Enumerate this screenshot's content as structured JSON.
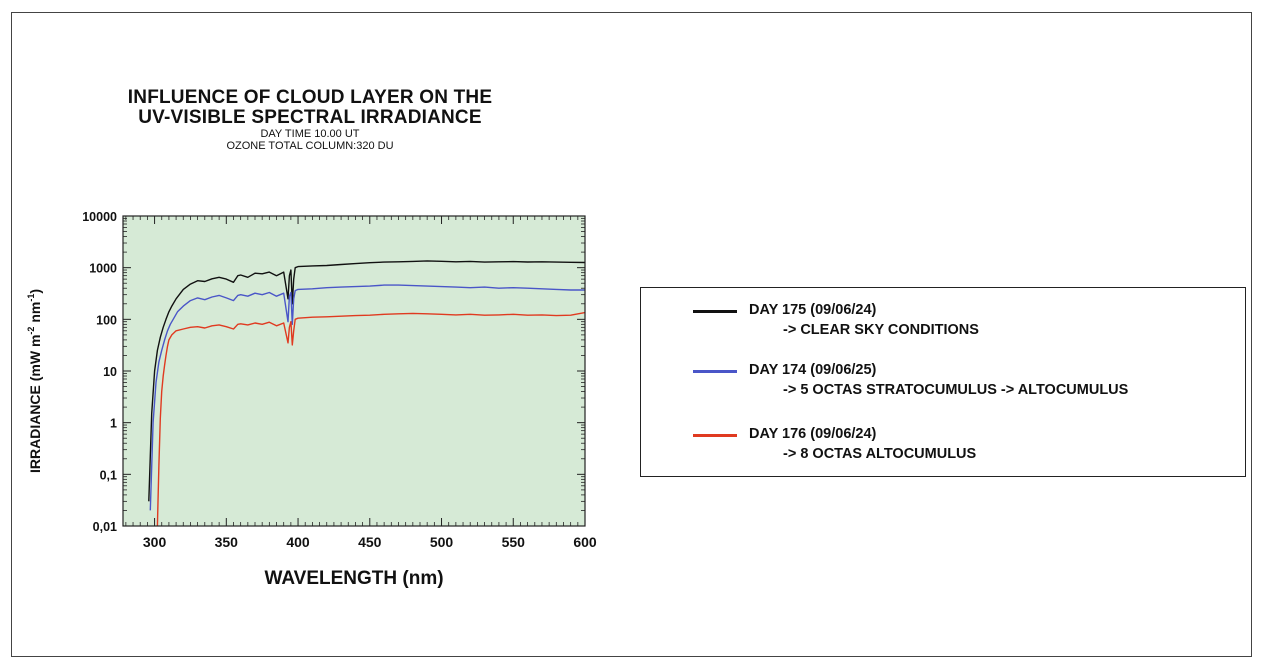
{
  "chart_data": {
    "type": "line",
    "title": "INFLUENCE OF CLOUD LAYER ON THE",
    "title_line2": "UV-VISIBLE SPECTRAL IRRADIANCE",
    "subtitle": "DAY TIME 10.00 UT",
    "subtitle2": "OZONE TOTAL COLUMN:320 DU",
    "xlabel": "WAVELENGTH (nm)",
    "ylabel": "IRRADIANCE (mW m-2 nm-1)",
    "ylabel_main": "IRRADIANCE (mW m",
    "ylabel_sup1": "-2",
    "ylabel_mid": " nm",
    "ylabel_sup2": "-1",
    "ylabel_end": ")",
    "xlim": [
      278,
      600
    ],
    "ylim": [
      0.01,
      10000
    ],
    "yscale": "log",
    "x_ticks": [
      "300",
      "350",
      "400",
      "450",
      "500",
      "550",
      "600"
    ],
    "x_tick_values": [
      300,
      350,
      400,
      450,
      500,
      550,
      600
    ],
    "y_ticks": [
      "0,01",
      "0,1",
      "1",
      "10",
      "100",
      "1000",
      "10000"
    ],
    "y_tick_values": [
      0.01,
      0.1,
      1,
      10,
      100,
      1000,
      10000
    ],
    "plot_background": "#d6ead6",
    "grid": false,
    "legend_position": "right",
    "series": [
      {
        "name": "DAY 175 (09/06/24)",
        "description": "-> CLEAR SKY CONDITIONS",
        "color": "#111111",
        "x": [
          296,
          298,
          300,
          302,
          304,
          306,
          308,
          310,
          312,
          315,
          318,
          320,
          325,
          330,
          335,
          340,
          345,
          350,
          355,
          358,
          360,
          365,
          370,
          375,
          380,
          385,
          390,
          393,
          394,
          395,
          396,
          397,
          398,
          400,
          410,
          420,
          430,
          440,
          450,
          460,
          470,
          480,
          490,
          500,
          510,
          520,
          530,
          540,
          550,
          560,
          570,
          580,
          590,
          600
        ],
        "y": [
          0.03,
          1.5,
          10,
          25,
          45,
          70,
          100,
          140,
          180,
          250,
          320,
          380,
          480,
          560,
          540,
          610,
          650,
          600,
          520,
          700,
          720,
          650,
          780,
          760,
          820,
          700,
          820,
          250,
          700,
          900,
          200,
          600,
          1000,
          1050,
          1080,
          1100,
          1150,
          1200,
          1250,
          1280,
          1300,
          1320,
          1350,
          1330,
          1300,
          1320,
          1280,
          1300,
          1310,
          1290,
          1300,
          1280,
          1270,
          1260
        ]
      },
      {
        "name": "DAY 174 (09/06/25)",
        "description": "-> 5 OCTAS STRATOCUMULUS -> ALTOCUMULUS",
        "color": "#4a56c8",
        "x": [
          297,
          299,
          301,
          303,
          305,
          307,
          309,
          311,
          313,
          316,
          320,
          325,
          330,
          335,
          340,
          345,
          350,
          355,
          358,
          360,
          365,
          370,
          375,
          380,
          385,
          390,
          393,
          394,
          395,
          396,
          397,
          398,
          400,
          410,
          420,
          430,
          440,
          450,
          460,
          470,
          480,
          490,
          500,
          510,
          520,
          530,
          540,
          550,
          560,
          570,
          580,
          590,
          600
        ],
        "y": [
          0.02,
          1,
          6,
          15,
          25,
          40,
          60,
          80,
          100,
          140,
          180,
          230,
          260,
          240,
          270,
          290,
          260,
          230,
          290,
          300,
          280,
          320,
          300,
          330,
          280,
          320,
          90,
          280,
          330,
          80,
          250,
          360,
          380,
          390,
          410,
          420,
          430,
          440,
          460,
          460,
          450,
          440,
          430,
          420,
          410,
          420,
          400,
          410,
          400,
          390,
          380,
          370,
          370
        ]
      },
      {
        "name": "DAY 176 (09/06/24)",
        "description": "-> 8 OCTAS ALTOCUMULUS",
        "color": "#e03a20",
        "x": [
          302,
          303,
          304,
          305,
          306,
          307,
          308,
          309,
          310,
          312,
          315,
          320,
          325,
          330,
          335,
          340,
          345,
          350,
          355,
          358,
          360,
          365,
          370,
          375,
          380,
          385,
          390,
          393,
          394,
          395,
          396,
          397,
          398,
          400,
          410,
          420,
          430,
          440,
          450,
          460,
          470,
          480,
          490,
          500,
          510,
          520,
          530,
          540,
          550,
          560,
          570,
          580,
          590,
          600
        ],
        "y": [
          0.01,
          0.15,
          1.2,
          4,
          8,
          13,
          20,
          30,
          40,
          50,
          60,
          65,
          70,
          72,
          68,
          75,
          78,
          72,
          65,
          80,
          82,
          78,
          85,
          80,
          88,
          75,
          85,
          35,
          70,
          90,
          32,
          60,
          100,
          105,
          110,
          112,
          115,
          118,
          120,
          125,
          128,
          130,
          128,
          125,
          122,
          125,
          120,
          122,
          125,
          120,
          122,
          118,
          120,
          135
        ]
      }
    ]
  }
}
